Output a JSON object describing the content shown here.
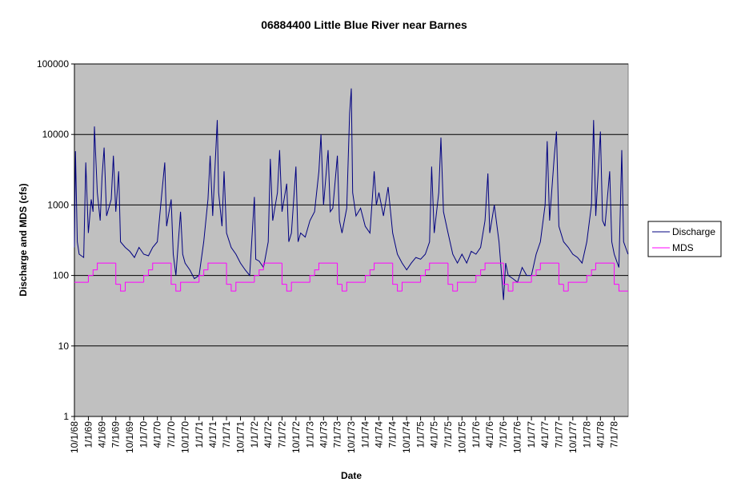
{
  "chart_data": {
    "type": "line",
    "title": "06884400 Little Blue River near Barnes",
    "x_label": "Date",
    "y_label": "Discharge and MDS (cfs)",
    "log_scale": true,
    "grid": true,
    "legend": "right",
    "background": "#c0c0c0",
    "xlim": [
      "1968-10-01",
      "1978-10-01"
    ],
    "xticks": [
      {
        "value": "1968-10-01",
        "label": "10/1/68"
      },
      {
        "value": "1969-01-01",
        "label": "1/1/69"
      },
      {
        "value": "1969-04-01",
        "label": "4/1/69"
      },
      {
        "value": "1969-07-01",
        "label": "7/1/69"
      },
      {
        "value": "1969-10-01",
        "label": "10/1/69"
      },
      {
        "value": "1970-01-01",
        "label": "1/1/70"
      },
      {
        "value": "1970-04-01",
        "label": "4/1/70"
      },
      {
        "value": "1970-07-01",
        "label": "7/1/70"
      },
      {
        "value": "1970-10-01",
        "label": "10/1/70"
      },
      {
        "value": "1971-01-01",
        "label": "1/1/71"
      },
      {
        "value": "1971-04-01",
        "label": "4/1/71"
      },
      {
        "value": "1971-07-01",
        "label": "7/1/71"
      },
      {
        "value": "1971-10-01",
        "label": "10/1/71"
      },
      {
        "value": "1972-01-01",
        "label": "1/1/72"
      },
      {
        "value": "1972-04-01",
        "label": "4/1/72"
      },
      {
        "value": "1972-07-01",
        "label": "7/1/72"
      },
      {
        "value": "1972-10-01",
        "label": "10/1/72"
      },
      {
        "value": "1973-01-01",
        "label": "1/1/73"
      },
      {
        "value": "1973-04-01",
        "label": "4/1/73"
      },
      {
        "value": "1973-07-01",
        "label": "7/1/73"
      },
      {
        "value": "1973-10-01",
        "label": "10/1/73"
      },
      {
        "value": "1974-01-01",
        "label": "1/1/74"
      },
      {
        "value": "1974-04-01",
        "label": "4/1/74"
      },
      {
        "value": "1974-07-01",
        "label": "7/1/74"
      },
      {
        "value": "1974-10-01",
        "label": "10/1/74"
      },
      {
        "value": "1975-01-01",
        "label": "1/1/75"
      },
      {
        "value": "1975-04-01",
        "label": "4/1/75"
      },
      {
        "value": "1975-07-01",
        "label": "7/1/75"
      },
      {
        "value": "1975-10-01",
        "label": "10/1/75"
      },
      {
        "value": "1976-01-01",
        "label": "1/1/76"
      },
      {
        "value": "1976-04-01",
        "label": "4/1/76"
      },
      {
        "value": "1976-07-01",
        "label": "7/1/76"
      },
      {
        "value": "1976-10-01",
        "label": "10/1/76"
      },
      {
        "value": "1977-01-01",
        "label": "1/1/77"
      },
      {
        "value": "1977-04-01",
        "label": "4/1/77"
      },
      {
        "value": "1977-07-01",
        "label": "7/1/77"
      },
      {
        "value": "1977-10-01",
        "label": "10/1/77"
      },
      {
        "value": "1978-01-01",
        "label": "1/1/78"
      },
      {
        "value": "1978-04-01",
        "label": "4/1/78"
      },
      {
        "value": "1978-07-01",
        "label": "7/1/78"
      }
    ],
    "ylim": [
      1,
      100000
    ],
    "yticks": [
      1,
      10,
      100,
      1000,
      10000,
      100000
    ],
    "series": [
      {
        "name": "Discharge",
        "color": "#000080",
        "x": [
          "1968-10-01",
          "1968-10-08",
          "1968-10-20",
          "1968-11-01",
          "1968-12-01",
          "1968-12-15",
          "1969-01-01",
          "1969-01-20",
          "1969-02-01",
          "1969-02-10",
          "1969-03-01",
          "1969-03-20",
          "1969-04-01",
          "1969-04-15",
          "1969-05-01",
          "1969-06-01",
          "1969-06-15",
          "1969-07-01",
          "1969-07-20",
          "1969-08-01",
          "1969-09-01",
          "1969-10-01",
          "1969-11-01",
          "1969-12-01",
          "1970-01-01",
          "1970-02-01",
          "1970-03-01",
          "1970-04-01",
          "1970-05-01",
          "1970-05-20",
          "1970-06-01",
          "1970-07-01",
          "1970-07-15",
          "1970-08-01",
          "1970-09-01",
          "1970-09-15",
          "1970-10-01",
          "1970-11-01",
          "1970-12-01",
          "1971-01-01",
          "1971-02-01",
          "1971-03-01",
          "1971-03-15",
          "1971-04-01",
          "1971-05-01",
          "1971-05-10",
          "1971-06-01",
          "1971-06-15",
          "1971-07-01",
          "1971-08-01",
          "1971-09-01",
          "1971-10-01",
          "1971-11-01",
          "1971-12-01",
          "1972-01-01",
          "1972-01-10",
          "1972-02-01",
          "1972-03-01",
          "1972-04-01",
          "1972-04-15",
          "1972-05-01",
          "1972-06-01",
          "1972-06-15",
          "1972-07-01",
          "1972-08-01",
          "1972-08-15",
          "1972-09-01",
          "1972-10-01",
          "1972-10-15",
          "1972-11-01",
          "1972-12-01",
          "1973-01-01",
          "1973-02-01",
          "1973-03-01",
          "1973-03-15",
          "1973-04-01",
          "1973-05-01",
          "1973-05-15",
          "1973-06-01",
          "1973-07-01",
          "1973-07-15",
          "1973-08-01",
          "1973-09-01",
          "1973-09-20",
          "1973-10-01",
          "1973-10-10",
          "1973-11-01",
          "1973-12-01",
          "1974-01-01",
          "1974-02-01",
          "1974-03-01",
          "1974-03-15",
          "1974-04-01",
          "1974-05-01",
          "1974-06-01",
          "1974-07-01",
          "1974-08-01",
          "1974-09-01",
          "1974-10-01",
          "1974-11-01",
          "1974-12-01",
          "1975-01-01",
          "1975-02-01",
          "1975-03-01",
          "1975-03-15",
          "1975-04-01",
          "1975-05-01",
          "1975-05-15",
          "1975-06-01",
          "1975-07-01",
          "1975-08-01",
          "1975-09-01",
          "1975-10-01",
          "1975-11-01",
          "1975-12-01",
          "1976-01-01",
          "1976-02-01",
          "1976-03-01",
          "1976-03-20",
          "1976-04-01",
          "1976-05-01",
          "1976-06-01",
          "1976-07-01",
          "1976-07-15",
          "1976-08-01",
          "1976-09-01",
          "1976-10-01",
          "1976-11-01",
          "1976-12-01",
          "1977-01-01",
          "1977-02-01",
          "1977-03-01",
          "1977-04-01",
          "1977-04-15",
          "1977-05-01",
          "1977-06-01",
          "1977-06-15",
          "1977-07-01",
          "1977-08-01",
          "1977-09-01",
          "1977-10-01",
          "1977-11-01",
          "1977-12-01",
          "1978-01-01",
          "1978-02-01",
          "1978-02-15",
          "1978-03-01",
          "1978-04-01",
          "1978-04-15",
          "1978-05-01",
          "1978-06-01",
          "1978-06-15",
          "1978-07-01",
          "1978-08-01",
          "1978-08-20",
          "1978-09-01",
          "1978-09-30"
        ],
        "values": [
          250,
          5800,
          300,
          200,
          180,
          4000,
          400,
          1200,
          800,
          13000,
          1500,
          600,
          2500,
          6500,
          700,
          1200,
          5000,
          800,
          3000,
          300,
          250,
          220,
          180,
          250,
          200,
          190,
          250,
          300,
          1500,
          4000,
          500,
          1200,
          200,
          100,
          800,
          200,
          150,
          120,
          90,
          100,
          300,
          1200,
          5000,
          700,
          16000,
          1500,
          500,
          3000,
          400,
          250,
          200,
          150,
          120,
          100,
          1300,
          170,
          160,
          130,
          300,
          4500,
          600,
          1500,
          6000,
          800,
          2000,
          300,
          400,
          3500,
          300,
          400,
          350,
          600,
          800,
          3000,
          10000,
          1000,
          6000,
          800,
          900,
          5000,
          600,
          400,
          900,
          20000,
          45000,
          1500,
          700,
          900,
          500,
          400,
          3000,
          1000,
          1500,
          700,
          1800,
          400,
          200,
          150,
          120,
          150,
          180,
          170,
          200,
          300,
          3500,
          400,
          1500,
          9000,
          800,
          400,
          200,
          150,
          200,
          150,
          220,
          200,
          250,
          600,
          2800,
          400,
          1000,
          300,
          45,
          150,
          100,
          90,
          80,
          130,
          100,
          100,
          200,
          300,
          1000,
          8000,
          600,
          5000,
          11000,
          500,
          300,
          250,
          200,
          180,
          150,
          300,
          1000,
          16000,
          700,
          11000,
          600,
          500,
          3000,
          300,
          200,
          130,
          6000,
          300,
          200
        ]
      },
      {
        "name": "MDS",
        "color": "#ff00ff",
        "step": true,
        "x": [
          "1968-10-01",
          "1969-01-01",
          "1969-02-01",
          "1969-03-01",
          "1969-07-01",
          "1969-08-01",
          "1969-09-01",
          "1970-01-01",
          "1970-02-01",
          "1970-03-01",
          "1970-07-01",
          "1970-08-01",
          "1970-09-01",
          "1971-01-01",
          "1971-02-01",
          "1971-03-01",
          "1971-07-01",
          "1971-08-01",
          "1971-09-01",
          "1972-01-01",
          "1972-02-01",
          "1972-03-01",
          "1972-07-01",
          "1972-08-01",
          "1972-09-01",
          "1973-01-01",
          "1973-02-01",
          "1973-03-01",
          "1973-07-01",
          "1973-08-01",
          "1973-09-01",
          "1974-01-01",
          "1974-02-01",
          "1974-03-01",
          "1974-07-01",
          "1974-08-01",
          "1974-09-01",
          "1975-01-01",
          "1975-02-01",
          "1975-03-01",
          "1975-07-01",
          "1975-08-01",
          "1975-09-01",
          "1976-01-01",
          "1976-02-01",
          "1976-03-01",
          "1976-07-01",
          "1976-08-01",
          "1976-09-01",
          "1977-01-01",
          "1977-02-01",
          "1977-03-01",
          "1977-07-01",
          "1977-08-01",
          "1977-09-01",
          "1978-01-01",
          "1978-02-01",
          "1978-03-01",
          "1978-07-01",
          "1978-08-01",
          "1978-10-01"
        ],
        "values": [
          80,
          100,
          120,
          150,
          75,
          60,
          80,
          100,
          120,
          150,
          75,
          60,
          80,
          100,
          120,
          150,
          75,
          60,
          80,
          100,
          120,
          150,
          75,
          60,
          80,
          100,
          120,
          150,
          75,
          60,
          80,
          100,
          120,
          150,
          75,
          60,
          80,
          100,
          120,
          150,
          75,
          60,
          80,
          100,
          120,
          150,
          75,
          60,
          80,
          100,
          120,
          150,
          75,
          60,
          80,
          100,
          120,
          150,
          75,
          60,
          60
        ]
      }
    ]
  }
}
